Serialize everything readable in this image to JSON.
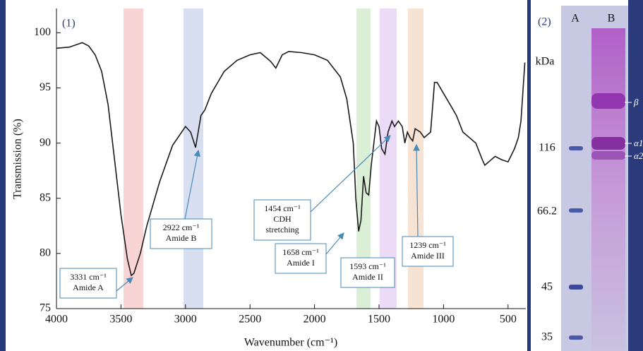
{
  "chart_data": {
    "type": "line",
    "panel_label": "(1)",
    "x_label": "Wavenumber (cm⁻¹)",
    "y_label": "Transmission (%)",
    "color": "#1a1a1a",
    "xlim": [
      4000,
      365
    ],
    "xticks": [
      4000,
      3500,
      3000,
      2500,
      2000,
      1500,
      1000,
      500
    ],
    "ylim": [
      75,
      102.2
    ],
    "yticks": [
      75,
      80,
      85,
      90,
      95,
      100
    ],
    "x": [
      4000,
      3900,
      3800,
      3750,
      3700,
      3650,
      3600,
      3550,
      3500,
      3450,
      3420,
      3400,
      3350,
      3300,
      3200,
      3100,
      3000,
      2960,
      2922,
      2880,
      2850,
      2800,
      2700,
      2600,
      2500,
      2420,
      2340,
      2300,
      2250,
      2200,
      2100,
      2000,
      1900,
      1800,
      1750,
      1700,
      1680,
      1658,
      1640,
      1620,
      1600,
      1580,
      1560,
      1540,
      1520,
      1500,
      1480,
      1454,
      1430,
      1400,
      1380,
      1350,
      1320,
      1300,
      1280,
      1260,
      1239,
      1220,
      1180,
      1150,
      1100,
      1070,
      1050,
      1000,
      950,
      900,
      850,
      800,
      750,
      700,
      680,
      650,
      600,
      550,
      500,
      450,
      420,
      400,
      370
    ],
    "values": [
      98.6,
      98.7,
      99.1,
      98.8,
      98.0,
      96.5,
      93.5,
      88.5,
      83.5,
      79.5,
      78.0,
      78.2,
      80,
      82.5,
      86.5,
      89.8,
      91.5,
      91,
      89.6,
      92.5,
      93,
      94.5,
      96.5,
      97.5,
      98,
      98.2,
      97.4,
      96.8,
      98,
      98.3,
      98.2,
      98,
      97.5,
      96,
      94,
      90,
      85,
      82,
      83,
      87,
      85.5,
      85.3,
      88,
      90,
      92,
      91.5,
      89.5,
      89,
      91,
      92,
      91.5,
      92,
      91.5,
      90,
      91,
      90.5,
      90.2,
      91.3,
      91,
      90.5,
      91,
      95.5,
      95.5,
      94.5,
      93.5,
      92.5,
      91,
      90.5,
      90,
      88.5,
      88,
      88.3,
      88.8,
      88.5,
      88.3,
      89.5,
      90.5,
      92,
      97.3
    ],
    "annotations": [
      {
        "lines": [
          "3331 cm⁻¹",
          "Amide A"
        ]
      },
      {
        "lines": [
          "2922 cm⁻¹",
          "Amide B"
        ]
      },
      {
        "lines": [
          "1454 cm⁻¹",
          "CDH",
          "stretching"
        ]
      },
      {
        "lines": [
          "1658 cm⁻¹",
          "Amide I"
        ]
      },
      {
        "lines": [
          "1593 cm⁻¹",
          "Amide II"
        ]
      },
      {
        "lines": [
          "1239 cm⁻¹",
          "Amide III"
        ]
      }
    ]
  },
  "gel": {
    "panel_label": "(2)",
    "lanes": [
      "A",
      "B"
    ],
    "unit": "kDa",
    "markers": [
      "116",
      "66.2",
      "45",
      "35"
    ],
    "bands": [
      "β",
      "α1",
      "α2"
    ]
  }
}
